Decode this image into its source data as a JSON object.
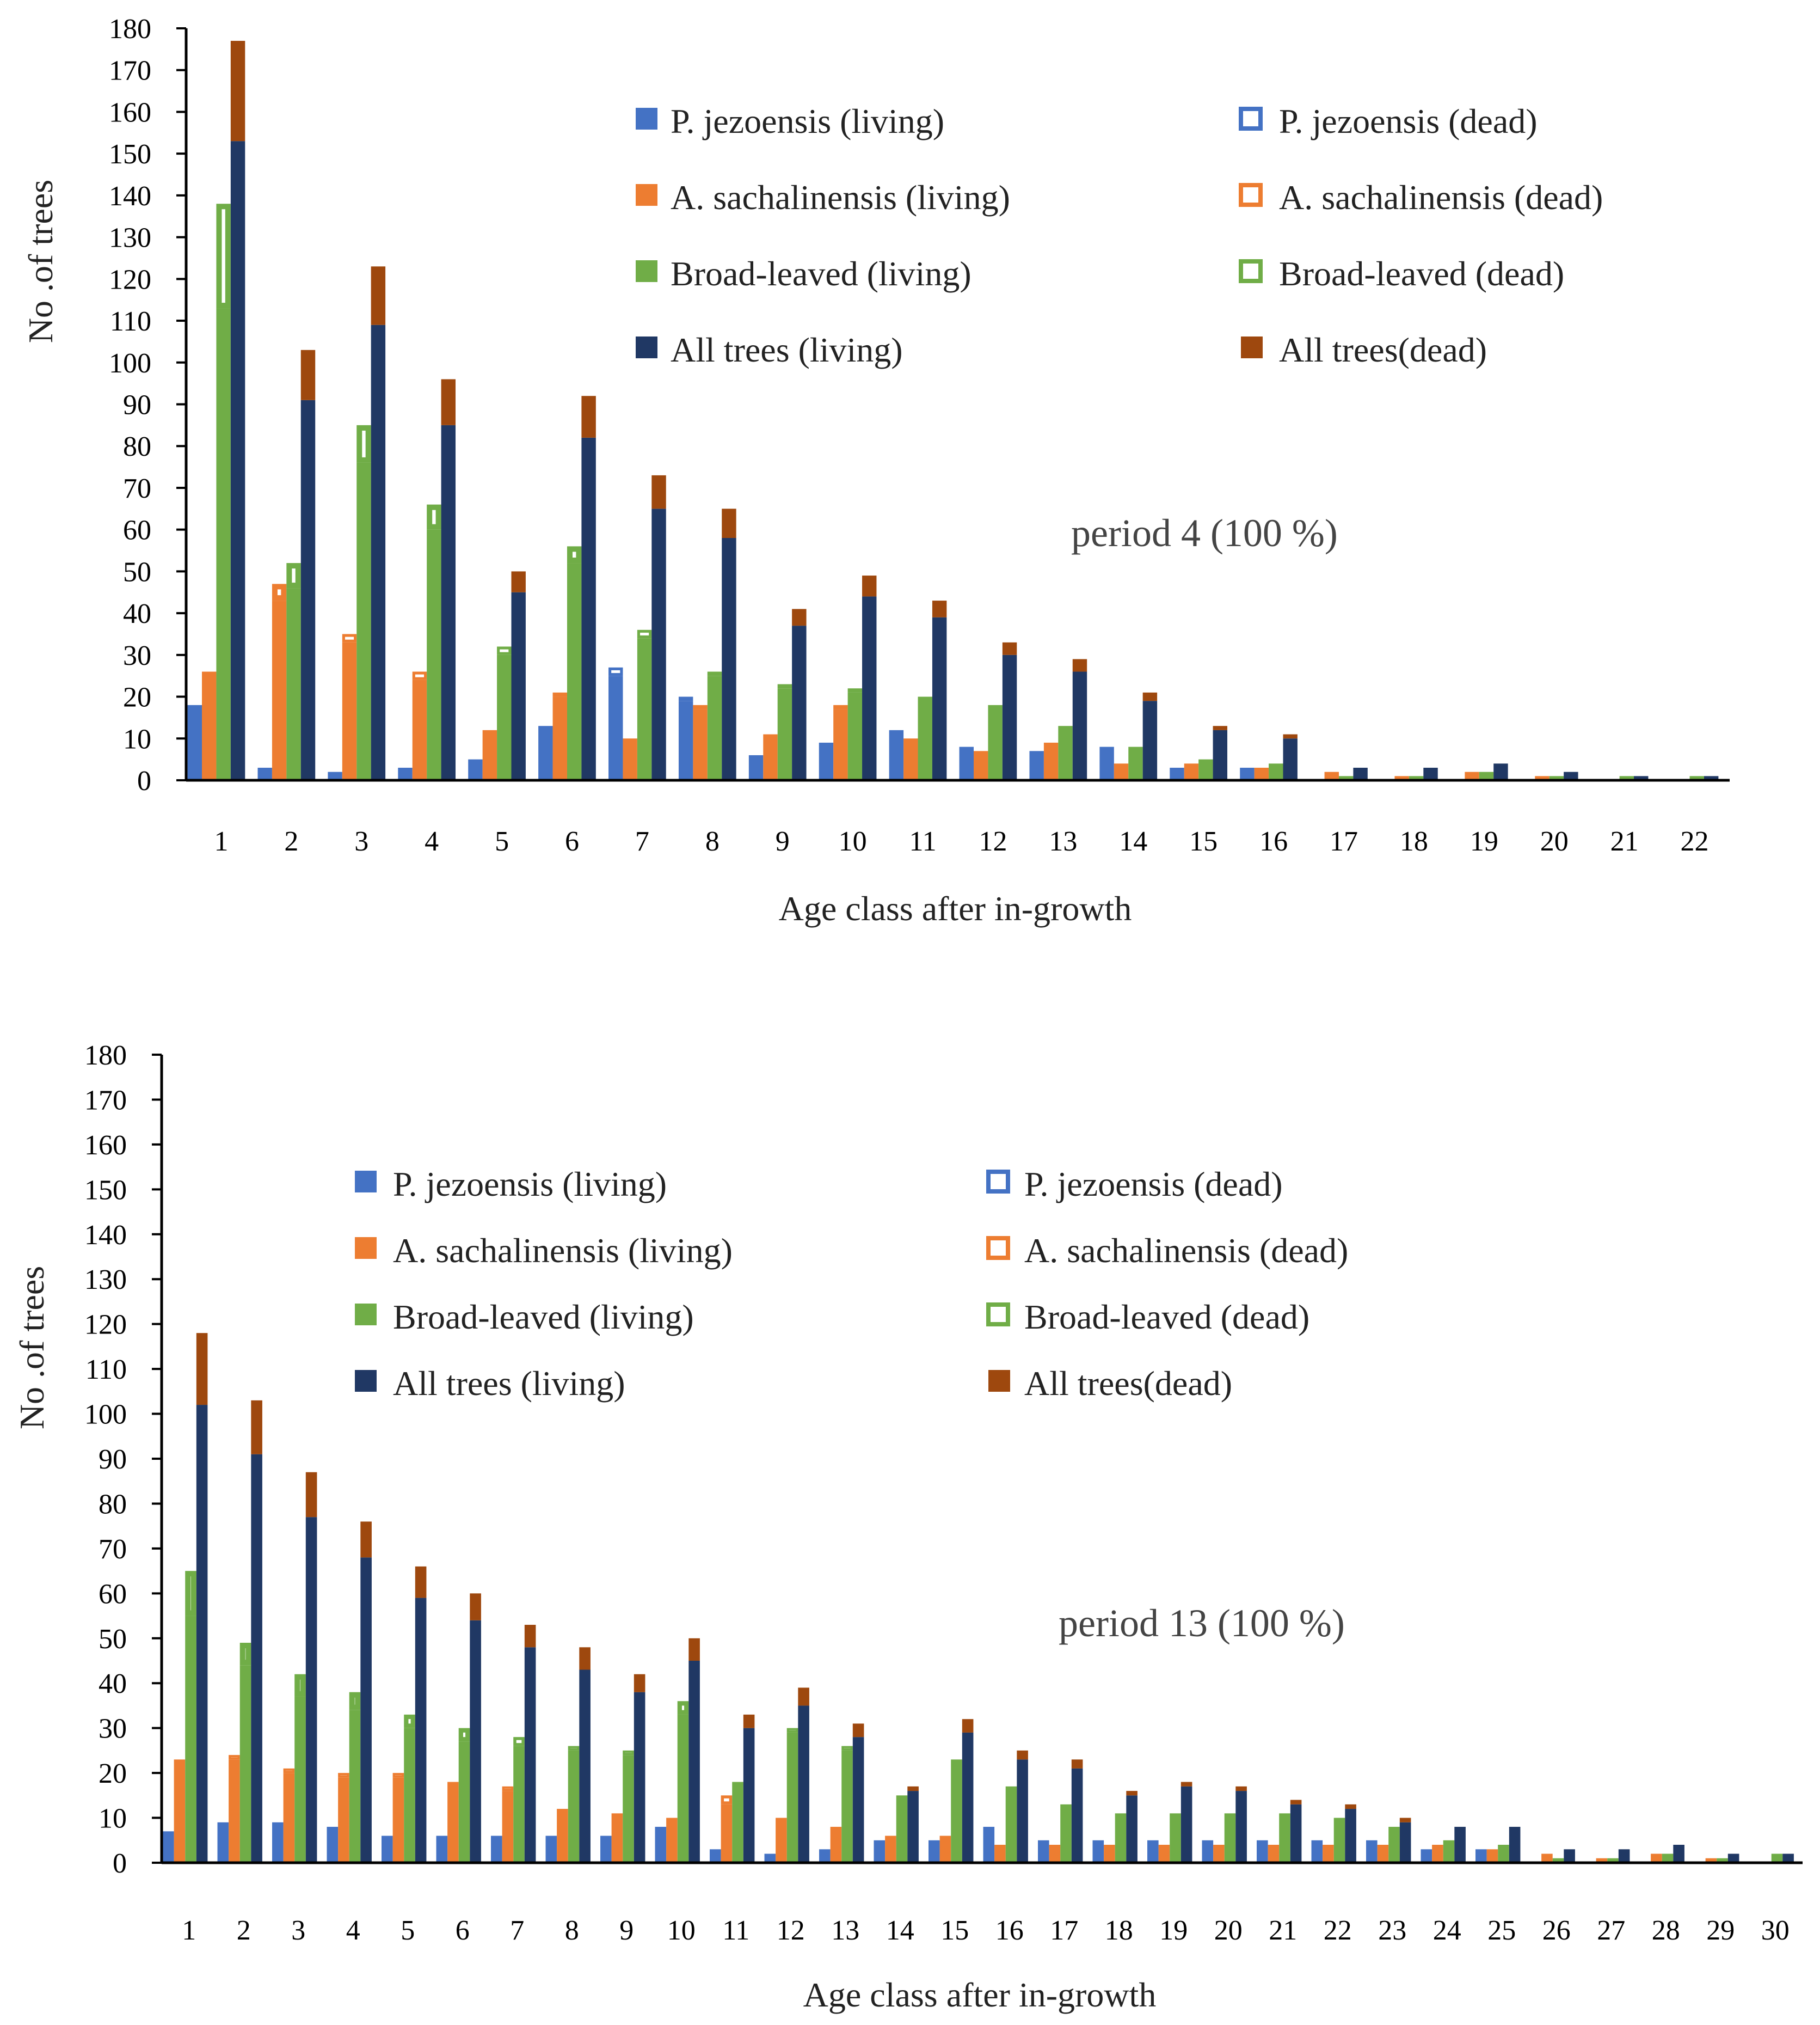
{
  "colors": {
    "pj": "#4472c4",
    "as": "#ed7d31",
    "bl": "#70ad47",
    "all": "#203864",
    "dead": "#9e480e",
    "axis": "#000000"
  },
  "legend": {
    "pj_living": "P. jezoensis  (living)",
    "pj_dead": "P. jezoensis  (dead)",
    "as_living": "A. sachalinensis  (living)",
    "as_dead": "A. sachalinensis (dead)",
    "bl_living": "Broad-leaved (living)",
    "bl_dead": "Broad-leaved (dead)",
    "all_living": "All trees (living)",
    "all_dead": "All trees(dead)"
  },
  "chart_data": [
    {
      "type": "bar",
      "title": "",
      "annotation": "period 4 (100 %)",
      "xlabel": "Age class after in-growth",
      "ylabel": "No .of trees",
      "ylim": [
        0,
        180
      ],
      "yticks": [
        "0",
        "10",
        "20",
        "30",
        "40",
        "50",
        "60",
        "70",
        "80",
        "90",
        "100",
        "110",
        "120",
        "130",
        "140",
        "150",
        "160",
        "170",
        "180"
      ],
      "categories": [
        "1",
        "2",
        "3",
        "4",
        "5",
        "6",
        "7",
        "8",
        "9",
        "10",
        "11",
        "12",
        "13",
        "14",
        "15",
        "16",
        "17",
        "18",
        "19",
        "20",
        "21",
        "22"
      ],
      "series": [
        {
          "name": "P. jezoensis  (living)",
          "values": [
            18,
            3,
            2,
            3,
            5,
            13,
            25,
            19,
            6,
            9,
            12,
            8,
            7,
            8,
            3,
            3,
            0,
            0,
            0,
            0,
            0,
            0
          ]
        },
        {
          "name": "P. jezoensis  (dead)",
          "values": [
            0,
            0,
            0,
            0,
            0,
            0,
            2,
            1,
            0,
            0,
            0,
            0,
            0,
            0,
            0,
            0,
            0,
            0,
            0,
            0,
            0,
            0
          ]
        },
        {
          "name": "A. sachalinensis  (living)",
          "values": [
            26,
            43,
            33,
            24,
            12,
            20,
            10,
            17,
            11,
            17,
            10,
            7,
            9,
            4,
            4,
            3,
            2,
            1,
            2,
            1,
            0,
            0
          ]
        },
        {
          "name": "A. sachalinensis (dead)",
          "values": [
            0,
            4,
            2,
            2,
            0,
            1,
            0,
            1,
            0,
            1,
            0,
            0,
            0,
            0,
            0,
            0,
            0,
            0,
            0,
            0,
            0,
            0
          ]
        },
        {
          "name": "Broad-leaved (living)",
          "values": [
            113,
            46,
            76,
            60,
            30,
            52,
            34,
            25,
            22,
            21,
            20,
            18,
            13,
            8,
            5,
            4,
            1,
            1,
            2,
            1,
            1,
            1
          ]
        },
        {
          "name": "Broad-leaved (dead)",
          "values": [
            25,
            6,
            9,
            6,
            2,
            4,
            2,
            1,
            1,
            1,
            0,
            0,
            0,
            0,
            0,
            0,
            0,
            0,
            0,
            0,
            0,
            0
          ]
        },
        {
          "name": "All trees (living)",
          "values": [
            153,
            91,
            109,
            85,
            45,
            82,
            65,
            58,
            37,
            44,
            39,
            30,
            26,
            19,
            12,
            10,
            3,
            3,
            4,
            2,
            1,
            1
          ]
        },
        {
          "name": "All trees(dead)",
          "values": [
            24,
            12,
            14,
            11,
            5,
            10,
            8,
            7,
            4,
            5,
            4,
            3,
            3,
            2,
            1,
            1,
            0,
            0,
            0,
            0,
            0,
            0
          ]
        }
      ]
    },
    {
      "type": "bar",
      "title": "",
      "annotation": "period 13 (100 %)",
      "xlabel": "Age class after in-growth",
      "ylabel": "No .of trees",
      "ylim": [
        0,
        180
      ],
      "yticks": [
        "0",
        "10",
        "20",
        "30",
        "40",
        "50",
        "60",
        "70",
        "80",
        "90",
        "100",
        "110",
        "120",
        "130",
        "140",
        "150",
        "160",
        "170",
        "180"
      ],
      "categories": [
        "1",
        "2",
        "3",
        "4",
        "5",
        "6",
        "7",
        "8",
        "9",
        "10",
        "11",
        "12",
        "13",
        "14",
        "15",
        "16",
        "17",
        "18",
        "19",
        "20",
        "21",
        "22",
        "23",
        "24",
        "25",
        "26",
        "27",
        "28",
        "29",
        "30"
      ],
      "series": [
        {
          "name": "P. jezoensis  (living)",
          "values": [
            7,
            9,
            9,
            8,
            6,
            6,
            6,
            6,
            6,
            8,
            3,
            2,
            3,
            5,
            5,
            8,
            5,
            5,
            5,
            5,
            5,
            5,
            5,
            3,
            3,
            0,
            0,
            0,
            0,
            0
          ]
        },
        {
          "name": "P. jezoensis  (dead)",
          "values": [
            0,
            0,
            0,
            0,
            0,
            0,
            0,
            0,
            0,
            0,
            0,
            0,
            0,
            0,
            0,
            0,
            0,
            0,
            0,
            0,
            0,
            0,
            0,
            0,
            0,
            0,
            0,
            0,
            0,
            0
          ]
        },
        {
          "name": "A. sachalinensis  (living)",
          "values": [
            23,
            23,
            20,
            19,
            19,
            18,
            16,
            12,
            11,
            10,
            13,
            10,
            8,
            6,
            6,
            4,
            4,
            4,
            4,
            4,
            4,
            4,
            4,
            4,
            3,
            2,
            1,
            2,
            1,
            0
          ]
        },
        {
          "name": "A. sachalinensis (dead)",
          "values": [
            0,
            1,
            1,
            1,
            1,
            0,
            1,
            0,
            0,
            0,
            2,
            0,
            0,
            0,
            0,
            0,
            0,
            0,
            0,
            0,
            0,
            0,
            0,
            0,
            0,
            0,
            0,
            0,
            0,
            0
          ]
        },
        {
          "name": "Broad-leaved (living)",
          "values": [
            55,
            44,
            37,
            34,
            30,
            27,
            26,
            25,
            24,
            33,
            18,
            29,
            25,
            15,
            23,
            17,
            13,
            11,
            11,
            11,
            11,
            10,
            8,
            5,
            4,
            1,
            1,
            2,
            1,
            2
          ]
        },
        {
          "name": "Broad-leaved (dead)",
          "values": [
            10,
            5,
            5,
            4,
            3,
            3,
            2,
            1,
            1,
            3,
            0,
            1,
            1,
            0,
            0,
            0,
            0,
            0,
            0,
            0,
            0,
            0,
            0,
            0,
            0,
            0,
            0,
            0,
            0,
            0
          ]
        },
        {
          "name": "All trees (living)",
          "values": [
            102,
            91,
            77,
            68,
            59,
            54,
            48,
            43,
            38,
            45,
            30,
            35,
            28,
            16,
            29,
            23,
            21,
            15,
            17,
            16,
            13,
            12,
            9,
            8,
            8,
            3,
            3,
            4,
            2,
            2
          ]
        },
        {
          "name": "All trees(dead)",
          "values": [
            16,
            12,
            10,
            8,
            7,
            6,
            5,
            5,
            4,
            5,
            3,
            4,
            3,
            1,
            3,
            2,
            2,
            1,
            1,
            1,
            1,
            1,
            1,
            0,
            0,
            0,
            0,
            0,
            0,
            0
          ]
        }
      ]
    }
  ]
}
